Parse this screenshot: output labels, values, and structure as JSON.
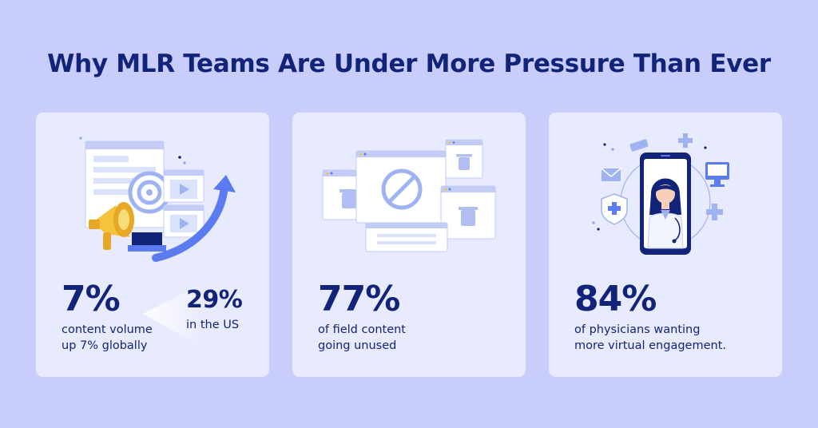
{
  "title": "Why MLR Teams Are Under More Pressure Than Ever",
  "colors": {
    "background": "#c9cdfc",
    "card": "#e8eafe",
    "navy": "#12237a",
    "accent_blue": "#5b7cf0",
    "yellow": "#f4c43c"
  },
  "cards": [
    {
      "icon": "megaphone-content-icon",
      "stat": "7%",
      "desc_lines": [
        "content volume",
        "up 7% globally"
      ],
      "secondary_stat": "29%",
      "secondary_desc": "in the US"
    },
    {
      "icon": "blocked-content-icon",
      "stat": "77%",
      "desc_lines": [
        "of field content",
        "going unused"
      ]
    },
    {
      "icon": "virtual-physician-icon",
      "stat": "84%",
      "desc_lines": [
        "of physicians wanting",
        "more virtual engagement."
      ]
    }
  ]
}
